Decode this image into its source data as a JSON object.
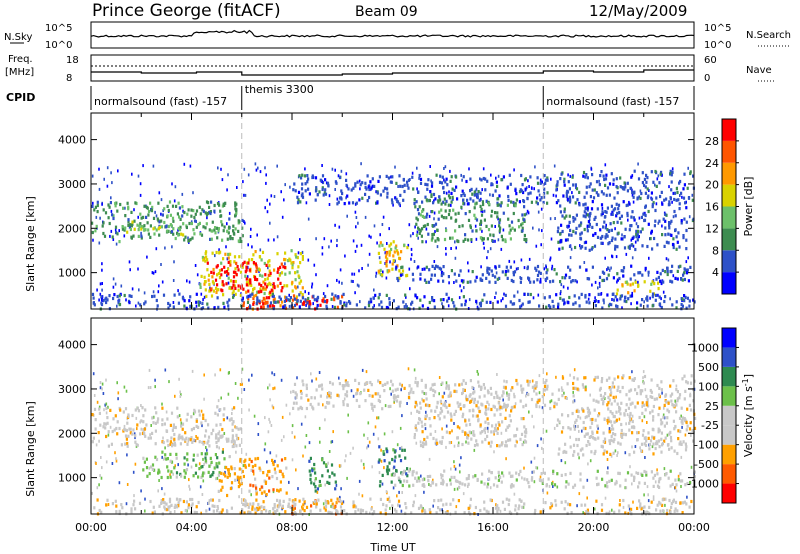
{
  "header": {
    "station": "Prince George (fitACF)",
    "beam": "Beam 09",
    "date": "12/May/2009"
  },
  "side_labels": {
    "nsky": "N.Sky",
    "freq": "Freq.",
    "freq_unit": "[MHz]",
    "cpid": "CPID",
    "nsearch": "N.Search",
    "nave": "Nave",
    "nsky_ticks": [
      "10^5",
      "10^0"
    ],
    "freq_ticks": [
      "18",
      "8"
    ],
    "nsearch_ticks": [
      "10^5",
      "10^0"
    ],
    "nave_ticks": [
      "60",
      "0"
    ]
  },
  "cpid_segments": [
    {
      "label": "normalsound (fast) -157",
      "start": "00:00",
      "end": "06:00"
    },
    {
      "label": "themis 3300",
      "start": "06:00",
      "end": "18:00"
    },
    {
      "label": "normalsound (fast) -157",
      "start": "18:00",
      "end": "24:00"
    }
  ],
  "colors": {
    "power": [
      "#0000ff",
      "#2e51c8",
      "#3d8c50",
      "#6cc06a",
      "#d9d200",
      "#ff9900",
      "#ff5500",
      "#ff0000"
    ],
    "velocity": [
      "#ff0000",
      "#ff5a00",
      "#ffa000",
      "#c8c8c8",
      "#c8c8c8",
      "#6cc04a",
      "#2e8a50",
      "#2e51c8",
      "#0000ff"
    ]
  },
  "chart_data": [
    {
      "type": "heatmap",
      "title": "Power",
      "xlabel": "",
      "ylabel": "Slant Range [km]",
      "xlim": [
        "00:00",
        "24:00"
      ],
      "ylim": [
        180,
        4600
      ],
      "y_ticks": [
        "1000",
        "2000",
        "3000",
        "4000"
      ],
      "colorbar": {
        "label": "Power [dB]",
        "ticks": [
          "4",
          "8",
          "12",
          "16",
          "20",
          "24",
          "28"
        ],
        "range": [
          0,
          32
        ]
      },
      "regions": [
        {
          "t0": 0.0,
          "t1": 6.0,
          "r0": 1700,
          "r1": 2600,
          "level": 2
        },
        {
          "t0": 1.2,
          "t1": 5.0,
          "r0": 1850,
          "r1": 2150,
          "level": 3
        },
        {
          "t0": 4.3,
          "t1": 8.4,
          "r0": 450,
          "r1": 1500,
          "level": 4
        },
        {
          "t0": 4.6,
          "t1": 7.7,
          "r0": 550,
          "r1": 1250,
          "level": 7
        },
        {
          "t0": 6.0,
          "t1": 10.0,
          "r0": 180,
          "r1": 480,
          "level": 6
        },
        {
          "t0": 6.4,
          "t1": 9.6,
          "r0": 180,
          "r1": 380,
          "level": 7
        },
        {
          "t0": 11.4,
          "t1": 12.6,
          "r0": 850,
          "r1": 1700,
          "level": 4
        },
        {
          "t0": 11.6,
          "t1": 12.3,
          "r0": 1100,
          "r1": 1500,
          "level": 5
        },
        {
          "t0": 8.0,
          "t1": 18.5,
          "r0": 2550,
          "r1": 3200,
          "level": 1
        },
        {
          "t0": 12.8,
          "t1": 17.3,
          "r0": 1700,
          "r1": 2700,
          "level": 2
        },
        {
          "t0": 12.0,
          "t1": 24.0,
          "r0": 780,
          "r1": 1150,
          "level": 1
        },
        {
          "t0": 18.5,
          "t1": 24.0,
          "r0": 1500,
          "r1": 3300,
          "level": 1
        },
        {
          "t0": 20.8,
          "t1": 22.6,
          "r0": 500,
          "r1": 800,
          "level": 4
        },
        {
          "t0": 0.0,
          "t1": 24.0,
          "r0": 180,
          "r1": 520,
          "level": 1
        }
      ]
    },
    {
      "type": "heatmap",
      "title": "Velocity",
      "xlabel": "Time UT",
      "ylabel": "Slant Range [km]",
      "xlim": [
        "00:00",
        "24:00"
      ],
      "ylim": [
        180,
        4600
      ],
      "x_ticks": [
        "00:00",
        "04:00",
        "08:00",
        "12:00",
        "16:00",
        "20:00",
        "00:00"
      ],
      "y_ticks": [
        "1000",
        "2000",
        "3000",
        "4000"
      ],
      "colorbar": {
        "label": "Velocity [m s^-1]",
        "ticks": [
          "-1000",
          "-500",
          "-100",
          "-25",
          "25",
          "100",
          "500",
          "1000"
        ],
        "range": [
          -1250,
          1250
        ]
      },
      "regions": [
        {
          "t0": 0.0,
          "t1": 6.0,
          "r0": 1700,
          "r1": 2600,
          "level": 3
        },
        {
          "t0": 2.0,
          "t1": 5.5,
          "r0": 1000,
          "r1": 1600,
          "level": 5
        },
        {
          "t0": 5.0,
          "t1": 7.8,
          "r0": 600,
          "r1": 1450,
          "level": 2
        },
        {
          "t0": 8.6,
          "t1": 9.7,
          "r0": 700,
          "r1": 1450,
          "level": 6
        },
        {
          "t0": 11.4,
          "t1": 12.6,
          "r0": 800,
          "r1": 1700,
          "level": 6
        },
        {
          "t0": 6.0,
          "t1": 10.0,
          "r0": 180,
          "r1": 500,
          "level": 2
        },
        {
          "t0": 8.0,
          "t1": 18.5,
          "r0": 2550,
          "r1": 3200,
          "level": 3
        },
        {
          "t0": 12.8,
          "t1": 17.3,
          "r0": 1700,
          "r1": 2700,
          "level": 3
        },
        {
          "t0": 12.0,
          "t1": 24.0,
          "r0": 780,
          "r1": 1150,
          "level": 4
        },
        {
          "t0": 18.5,
          "t1": 24.0,
          "r0": 1500,
          "r1": 3300,
          "level": 3
        },
        {
          "t0": 0.0,
          "t1": 24.0,
          "r0": 180,
          "r1": 520,
          "level": 3
        }
      ]
    }
  ]
}
